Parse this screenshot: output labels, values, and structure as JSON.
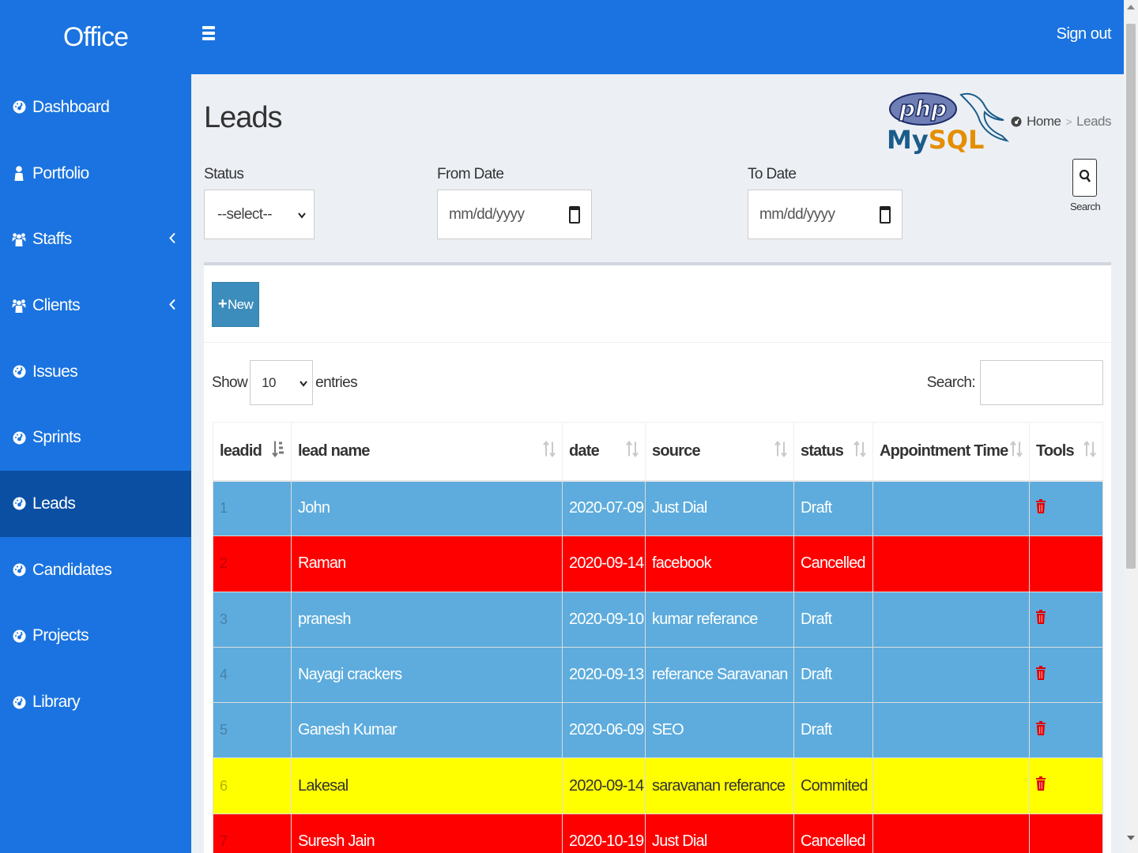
{
  "header": {
    "logo": "Office",
    "signout": "Sign out"
  },
  "sidebar": {
    "items": [
      {
        "label": "Dashboard",
        "icon": "dashboard-icon",
        "chevron": false,
        "active": false
      },
      {
        "label": "Portfolio",
        "icon": "user-icon",
        "chevron": false,
        "active": false
      },
      {
        "label": "Staffs",
        "icon": "users-icon",
        "chevron": true,
        "active": false
      },
      {
        "label": "Clients",
        "icon": "users-icon",
        "chevron": true,
        "active": false
      },
      {
        "label": "Issues",
        "icon": "dashboard-icon",
        "chevron": false,
        "active": false
      },
      {
        "label": "Sprints",
        "icon": "dashboard-icon",
        "chevron": false,
        "active": false
      },
      {
        "label": "Leads",
        "icon": "dashboard-icon",
        "chevron": false,
        "active": true
      },
      {
        "label": "Candidates",
        "icon": "dashboard-icon",
        "chevron": false,
        "active": false
      },
      {
        "label": "Projects",
        "icon": "dashboard-icon",
        "chevron": false,
        "active": false
      },
      {
        "label": "Library",
        "icon": "dashboard-icon",
        "chevron": false,
        "active": false
      }
    ]
  },
  "page": {
    "title": "Leads",
    "logo_text_top": "php",
    "logo_text_bottom": "MySQL",
    "breadcrumb": {
      "home": "Home",
      "current": "Leads"
    }
  },
  "filters": {
    "status_label": "Status",
    "status_value": "--select--",
    "from_label": "From Date",
    "from_placeholder": "mm/dd/yyyy",
    "to_label": "To Date",
    "to_placeholder": "mm/dd/yyyy",
    "search_label": "Search"
  },
  "box": {
    "new_label": "New",
    "show_label": "Show",
    "entries_value": "10",
    "entries_label": "entries",
    "search_label": "Search:"
  },
  "table": {
    "columns": [
      "leadid",
      "lead name",
      "date",
      "source",
      "status",
      "Appointment Time",
      "Tools"
    ],
    "rows": [
      {
        "id": "1",
        "name": "John",
        "date": "2020-07-09",
        "source": "Just Dial",
        "status": "Draft",
        "appointment": "",
        "color": "blue",
        "delete": true
      },
      {
        "id": "2",
        "name": "Raman",
        "date": "2020-09-14",
        "source": "facebook",
        "status": "Cancelled",
        "appointment": "",
        "color": "red",
        "delete": false
      },
      {
        "id": "3",
        "name": "pranesh",
        "date": "2020-09-10",
        "source": "kumar referance",
        "status": "Draft",
        "appointment": "",
        "color": "blue",
        "delete": true
      },
      {
        "id": "4",
        "name": "Nayagi crackers",
        "date": "2020-09-13",
        "source": "referance Saravanan",
        "status": "Draft",
        "appointment": "",
        "color": "blue",
        "delete": true
      },
      {
        "id": "5",
        "name": "Ganesh Kumar",
        "date": "2020-06-09",
        "source": "SEO",
        "status": "Draft",
        "appointment": "",
        "color": "blue",
        "delete": true
      },
      {
        "id": "6",
        "name": "Lakesal",
        "date": "2020-09-14",
        "source": "saravanan referance",
        "status": "Commited",
        "appointment": "",
        "color": "yellow",
        "delete": true
      },
      {
        "id": "7",
        "name": "Suresh Jain",
        "date": "2020-10-19",
        "source": "Just Dial",
        "status": "Cancelled",
        "appointment": "",
        "color": "red",
        "delete": false
      }
    ]
  },
  "colors": {
    "header_bg": "#1a73e0",
    "sidebar_active": "#0b4fa3",
    "row_blue": "#5dacdd",
    "row_red": "#ff0000",
    "row_yellow": "#ffff00",
    "new_button": "#3c8dbc",
    "trash_icon": "#e00000"
  }
}
